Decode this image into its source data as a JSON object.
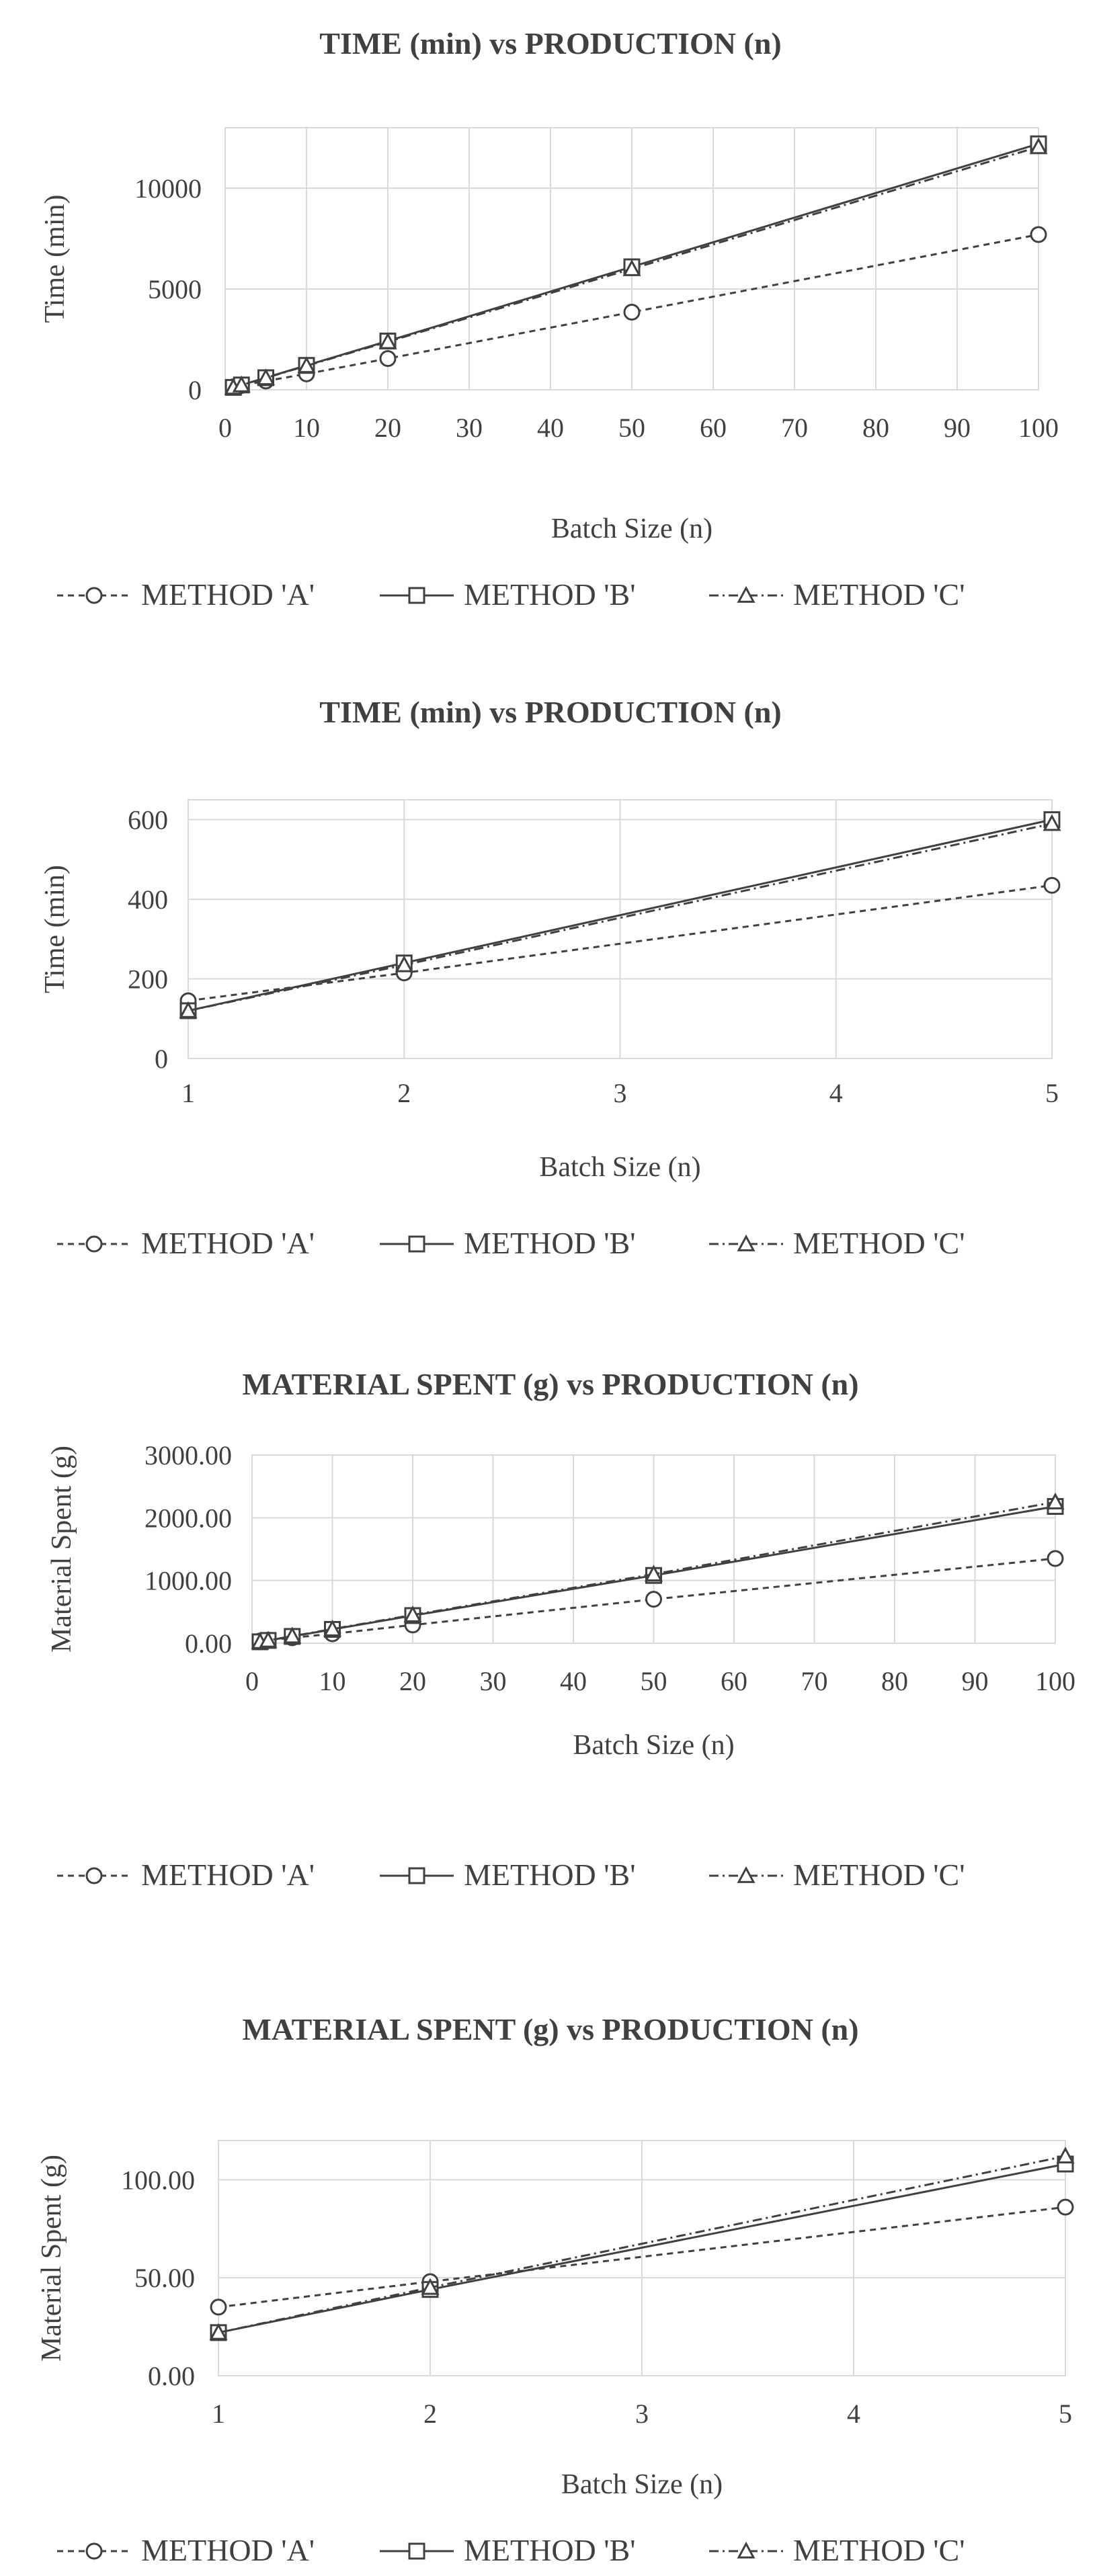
{
  "chart_data": [
    {
      "type": "line",
      "title": "TIME (min) vs PRODUCTION (n)",
      "xlabel": "Batch Size (n)",
      "ylabel": "Time (min)",
      "xlim": [
        0,
        100
      ],
      "ylim": [
        0,
        13000
      ],
      "xticks": [
        0,
        10,
        20,
        30,
        40,
        50,
        60,
        70,
        80,
        90,
        100
      ],
      "xtick_labels": [
        "0",
        "10",
        "20",
        "30",
        "40",
        "50",
        "60",
        "70",
        "80",
        "90",
        "100"
      ],
      "yticks": [
        0,
        5000,
        10000
      ],
      "ytick_labels": [
        "0",
        "5000",
        "10000"
      ],
      "x": [
        1,
        2,
        5,
        10,
        20,
        50,
        100
      ],
      "series": [
        {
          "name": "METHOD 'A'",
          "values": [
            145,
            215,
            435,
            790,
            1550,
            3850,
            7700
          ]
        },
        {
          "name": "METHOD 'B'",
          "values": [
            120,
            240,
            600,
            1210,
            2420,
            6100,
            12200
          ]
        },
        {
          "name": "METHOD 'C'",
          "values": [
            120,
            235,
            590,
            1190,
            2380,
            6000,
            12050
          ]
        }
      ]
    },
    {
      "type": "line",
      "title": "TIME (min) vs PRODUCTION (n)",
      "xlabel": "Batch Size (n)",
      "ylabel": "Time (min)",
      "xlim": [
        1,
        5
      ],
      "ylim": [
        0,
        650
      ],
      "xticks": [
        1,
        2,
        3,
        4,
        5
      ],
      "xtick_labels": [
        "1",
        "2",
        "3",
        "4",
        "5"
      ],
      "yticks": [
        0,
        200,
        400,
        600
      ],
      "ytick_labels": [
        "0",
        "200",
        "400",
        "600"
      ],
      "x": [
        1,
        2,
        5
      ],
      "series": [
        {
          "name": "METHOD 'A'",
          "values": [
            145,
            215,
            435
          ]
        },
        {
          "name": "METHOD 'B'",
          "values": [
            120,
            240,
            600
          ]
        },
        {
          "name": "METHOD 'C'",
          "values": [
            120,
            235,
            590
          ]
        }
      ]
    },
    {
      "type": "line",
      "title": "MATERIAL SPENT (g) vs PRODUCTION (n)",
      "xlabel": "Batch Size (n)",
      "ylabel": "Material Spent (g)",
      "xlim": [
        0,
        100
      ],
      "ylim": [
        0,
        3000
      ],
      "xticks": [
        0,
        10,
        20,
        30,
        40,
        50,
        60,
        70,
        80,
        90,
        100
      ],
      "xtick_labels": [
        "0",
        "10",
        "20",
        "30",
        "40",
        "50",
        "60",
        "70",
        "80",
        "90",
        "100"
      ],
      "yticks": [
        0,
        1000,
        2000,
        3000
      ],
      "ytick_labels": [
        "0.00",
        "1000.00",
        "2000.00",
        "3000.00"
      ],
      "x": [
        1,
        2,
        5,
        10,
        20,
        50,
        100
      ],
      "series": [
        {
          "name": "METHOD 'A'",
          "values": [
            35,
            48,
            86,
            150,
            290,
            700,
            1350
          ]
        },
        {
          "name": "METHOD 'B'",
          "values": [
            22,
            44,
            108,
            220,
            440,
            1080,
            2180
          ]
        },
        {
          "name": "METHOD 'C'",
          "values": [
            22,
            45,
            112,
            225,
            450,
            1100,
            2250
          ]
        }
      ]
    },
    {
      "type": "line",
      "title": "MATERIAL SPENT (g) vs PRODUCTION (n)",
      "xlabel": "Batch Size (n)",
      "ylabel": "Material Spent (g)",
      "xlim": [
        1,
        5
      ],
      "ylim": [
        0,
        120
      ],
      "xticks": [
        1,
        2,
        3,
        4,
        5
      ],
      "xtick_labels": [
        "1",
        "2",
        "3",
        "4",
        "5"
      ],
      "yticks": [
        0,
        50,
        100
      ],
      "ytick_labels": [
        "0.00",
        "50.00",
        "100.00"
      ],
      "x": [
        1,
        2,
        5
      ],
      "series": [
        {
          "name": "METHOD 'A'",
          "values": [
            35,
            48,
            86
          ]
        },
        {
          "name": "METHOD 'B'",
          "values": [
            22,
            44,
            108
          ]
        },
        {
          "name": "METHOD 'C'",
          "values": [
            22,
            45,
            112
          ]
        }
      ]
    }
  ]
}
